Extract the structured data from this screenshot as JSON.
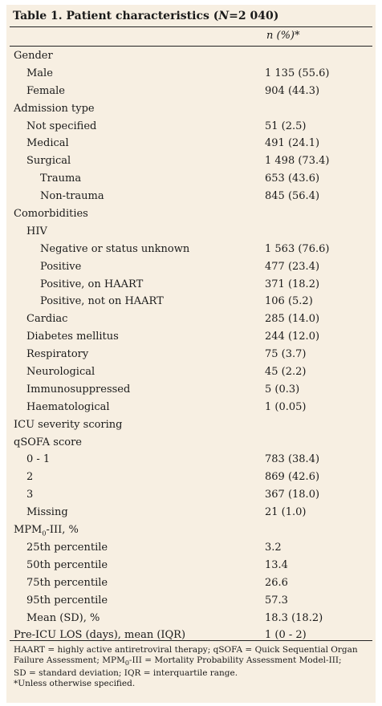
{
  "table": {
    "title_plain": "Table 1. Patient characteristics (",
    "title_italic": "N",
    "title_rest": "=2 040)",
    "column_header": "n (%)*",
    "rows": [
      {
        "label": "Gender",
        "value": "",
        "indent": 0
      },
      {
        "label": "Male",
        "value": "1 135 (55.6)",
        "indent": 1
      },
      {
        "label": "Female",
        "value": "904 (44.3)",
        "indent": 1
      },
      {
        "label": "Admission type",
        "value": "",
        "indent": 0
      },
      {
        "label": "Not specified",
        "value": "51 (2.5)",
        "indent": 1
      },
      {
        "label": "Medical",
        "value": "491 (24.1)",
        "indent": 1
      },
      {
        "label": "Surgical",
        "value": "1 498 (73.4)",
        "indent": 1
      },
      {
        "label": "Trauma",
        "value": "653 (43.6)",
        "indent": 2
      },
      {
        "label": "Non-trauma",
        "value": "845 (56.4)",
        "indent": 2
      },
      {
        "label": "Comorbidities",
        "value": "",
        "indent": 0
      },
      {
        "label": "HIV",
        "value": "",
        "indent": 1
      },
      {
        "label": "Negative or status unknown",
        "value": "1 563 (76.6)",
        "indent": 2
      },
      {
        "label": "Positive",
        "value": "477 (23.4)",
        "indent": 2
      },
      {
        "label": "Positive, on HAART",
        "value": "371 (18.2)",
        "indent": 2
      },
      {
        "label": "Positive, not on HAART",
        "value": "106 (5.2)",
        "indent": 2
      },
      {
        "label": "Cardiac",
        "value": "285 (14.0)",
        "indent": 1
      },
      {
        "label": "Diabetes mellitus",
        "value": "244 (12.0)",
        "indent": 1
      },
      {
        "label": "Respiratory",
        "value": "75 (3.7)",
        "indent": 1
      },
      {
        "label": "Neurological",
        "value": "45 (2.2)",
        "indent": 1
      },
      {
        "label": "Immunosuppressed",
        "value": "5 (0.3)",
        "indent": 1
      },
      {
        "label": "Haematological",
        "value": "1 (0.05)",
        "indent": 1
      },
      {
        "label": "ICU severity scoring",
        "value": "",
        "indent": 0
      },
      {
        "label": "qSOFA score",
        "value": "",
        "indent": 0
      },
      {
        "label": "0 - 1",
        "value": "783 (38.4)",
        "indent": 1
      },
      {
        "label": "2",
        "value": "869 (42.6)",
        "indent": 1
      },
      {
        "label": "3",
        "value": "367 (18.0)",
        "indent": 1
      },
      {
        "label": "Missing",
        "value": "21 (1.0)",
        "indent": 1
      },
      {
        "label": "MPM0-III, %",
        "label_pre": "MPM",
        "label_sub": "0",
        "label_post": "-III, %",
        "value": "",
        "indent": 0
      },
      {
        "label": "25th percentile",
        "value": "3.2",
        "indent": 1
      },
      {
        "label": "50th percentile",
        "value": "13.4",
        "indent": 1
      },
      {
        "label": "75th percentile",
        "value": "26.6",
        "indent": 1
      },
      {
        "label": "95th percentile",
        "value": "57.3",
        "indent": 1
      },
      {
        "label": "Mean (SD), %",
        "value": "18.3 (18.2)",
        "indent": 1
      },
      {
        "label": "Pre-ICU LOS (days), mean (IQR)",
        "value": "1 (0 - 2)",
        "indent": 0
      }
    ],
    "footnote_lines": [
      "HAART = highly active antiretroviral therapy; qSOFA = Quick Sequential Organ",
      "Failure Assessment; MPM0-III = Mortality Probability Assessment Model-III;",
      "SD = standard deviation; IQR = interquartile range.",
      "*Unless otherwise specified."
    ],
    "footnote_line2_pre": "Failure Assessment; MPM",
    "footnote_line2_sub": "0",
    "footnote_line2_post": "-III = Mortality Probability Assessment Model-III;"
  }
}
